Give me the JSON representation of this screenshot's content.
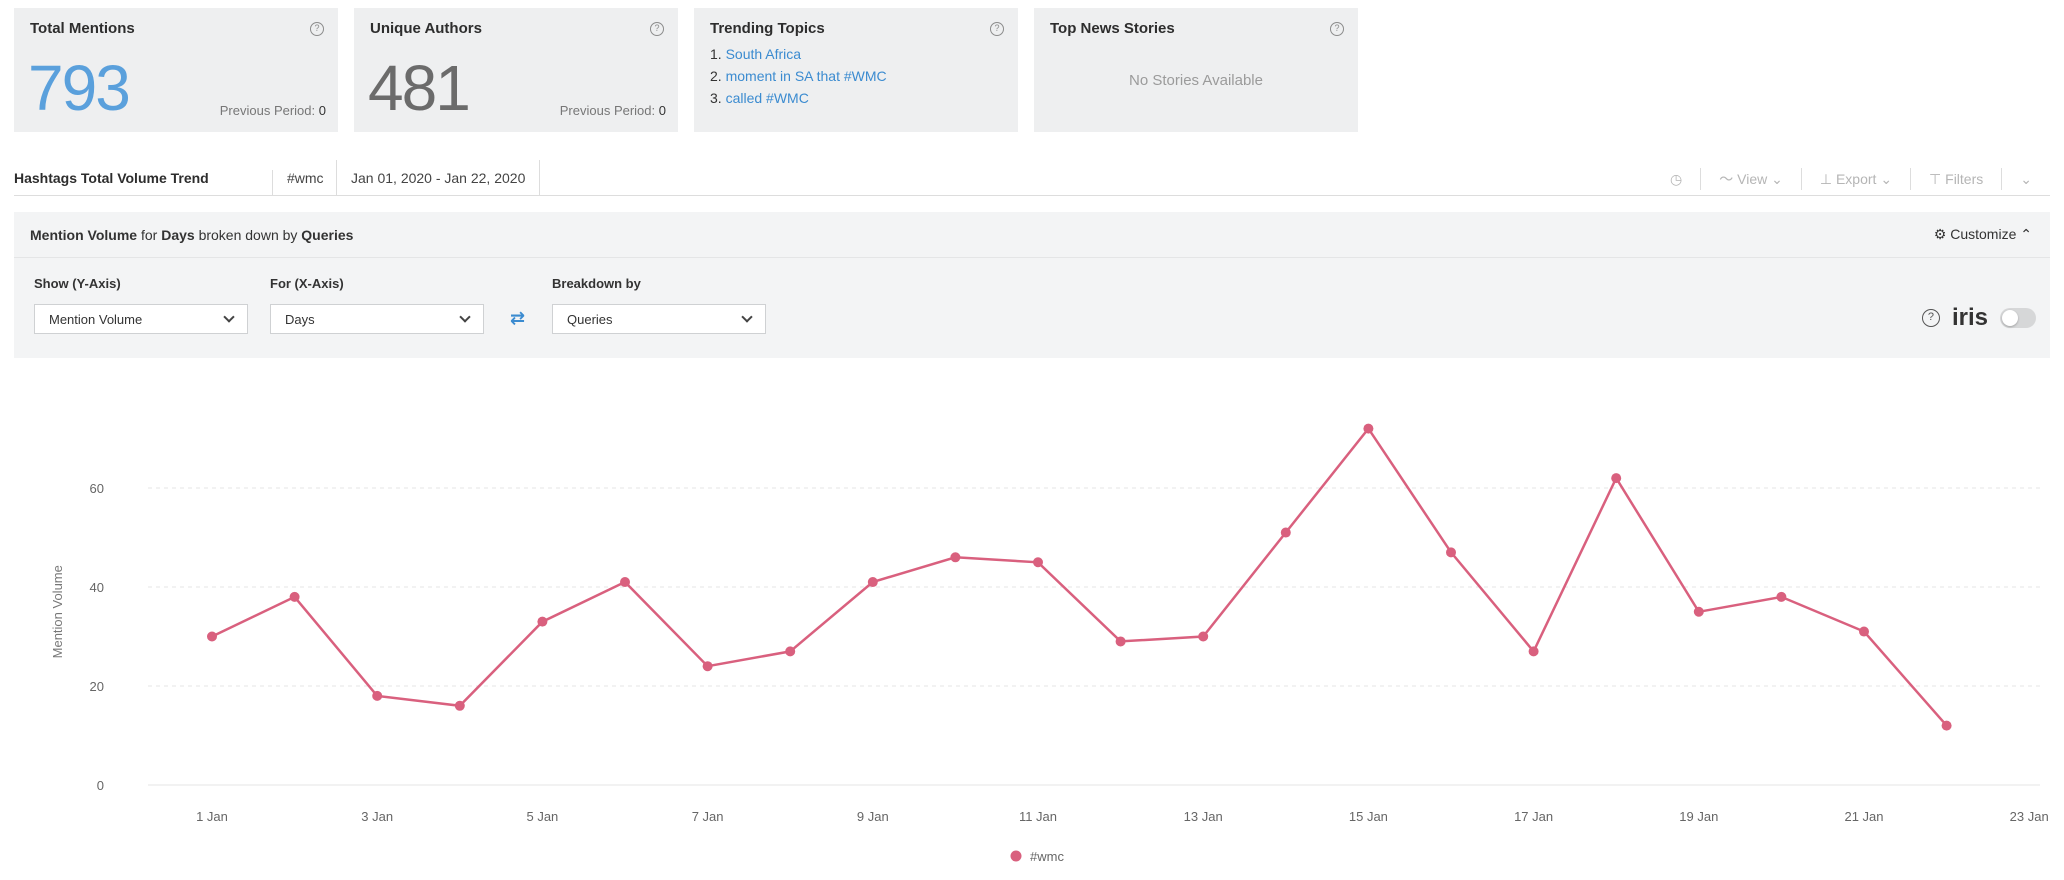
{
  "colors": {
    "accent": "#3b8bd0",
    "series": "#d9607e",
    "number_blue": "#5aa0dc"
  },
  "cards": {
    "total_mentions": {
      "title": "Total Mentions",
      "value": "793",
      "prev_label": "Previous Period:",
      "prev_value": "0"
    },
    "unique_authors": {
      "title": "Unique Authors",
      "value": "481",
      "prev_label": "Previous Period:",
      "prev_value": "0"
    },
    "trending_topics": {
      "title": "Trending Topics",
      "items": [
        "South Africa",
        "moment in SA that #WMC",
        "called #WMC"
      ]
    },
    "top_news": {
      "title": "Top News Stories",
      "empty_text": "No Stories Available"
    }
  },
  "toolbar": {
    "title": "Hashtags Total Volume Trend",
    "tag": "#wmc",
    "date_range": "Jan 01, 2020 - Jan 22, 2020",
    "view_label": "View",
    "export_label": "Export",
    "filters_label": "Filters"
  },
  "panel": {
    "head": {
      "metric": "Mention Volume",
      "for_text": "for",
      "unit": "Days",
      "broken_text": "broken down by",
      "breakdown": "Queries"
    },
    "customize_label": "Customize",
    "y_axis": {
      "label": "Show (Y-Axis)",
      "value": "Mention Volume"
    },
    "x_axis": {
      "label": "For (X-Axis)",
      "value": "Days"
    },
    "breakdown": {
      "label": "Breakdown by",
      "value": "Queries"
    },
    "iris_label": "iris"
  },
  "chart_data": {
    "type": "line",
    "ylabel": "Mention Volume",
    "ylim": [
      0,
      75
    ],
    "yticks": [
      0,
      20,
      40,
      60
    ],
    "x": [
      "1 Jan",
      "2 Jan",
      "3 Jan",
      "4 Jan",
      "5 Jan",
      "6 Jan",
      "7 Jan",
      "8 Jan",
      "9 Jan",
      "10 Jan",
      "11 Jan",
      "12 Jan",
      "13 Jan",
      "14 Jan",
      "15 Jan",
      "16 Jan",
      "17 Jan",
      "18 Jan",
      "19 Jan",
      "20 Jan",
      "21 Jan",
      "22 Jan"
    ],
    "xticks": [
      "1 Jan",
      "3 Jan",
      "5 Jan",
      "7 Jan",
      "9 Jan",
      "11 Jan",
      "13 Jan",
      "15 Jan",
      "17 Jan",
      "19 Jan",
      "21 Jan",
      "23 Jan"
    ],
    "series": [
      {
        "name": "#wmc",
        "values": [
          30,
          38,
          18,
          16,
          33,
          41,
          24,
          27,
          41,
          46,
          45,
          29,
          30,
          51,
          72,
          47,
          27,
          62,
          35,
          38,
          31,
          12
        ]
      }
    ],
    "grid": true,
    "legend": "bottom-center"
  }
}
